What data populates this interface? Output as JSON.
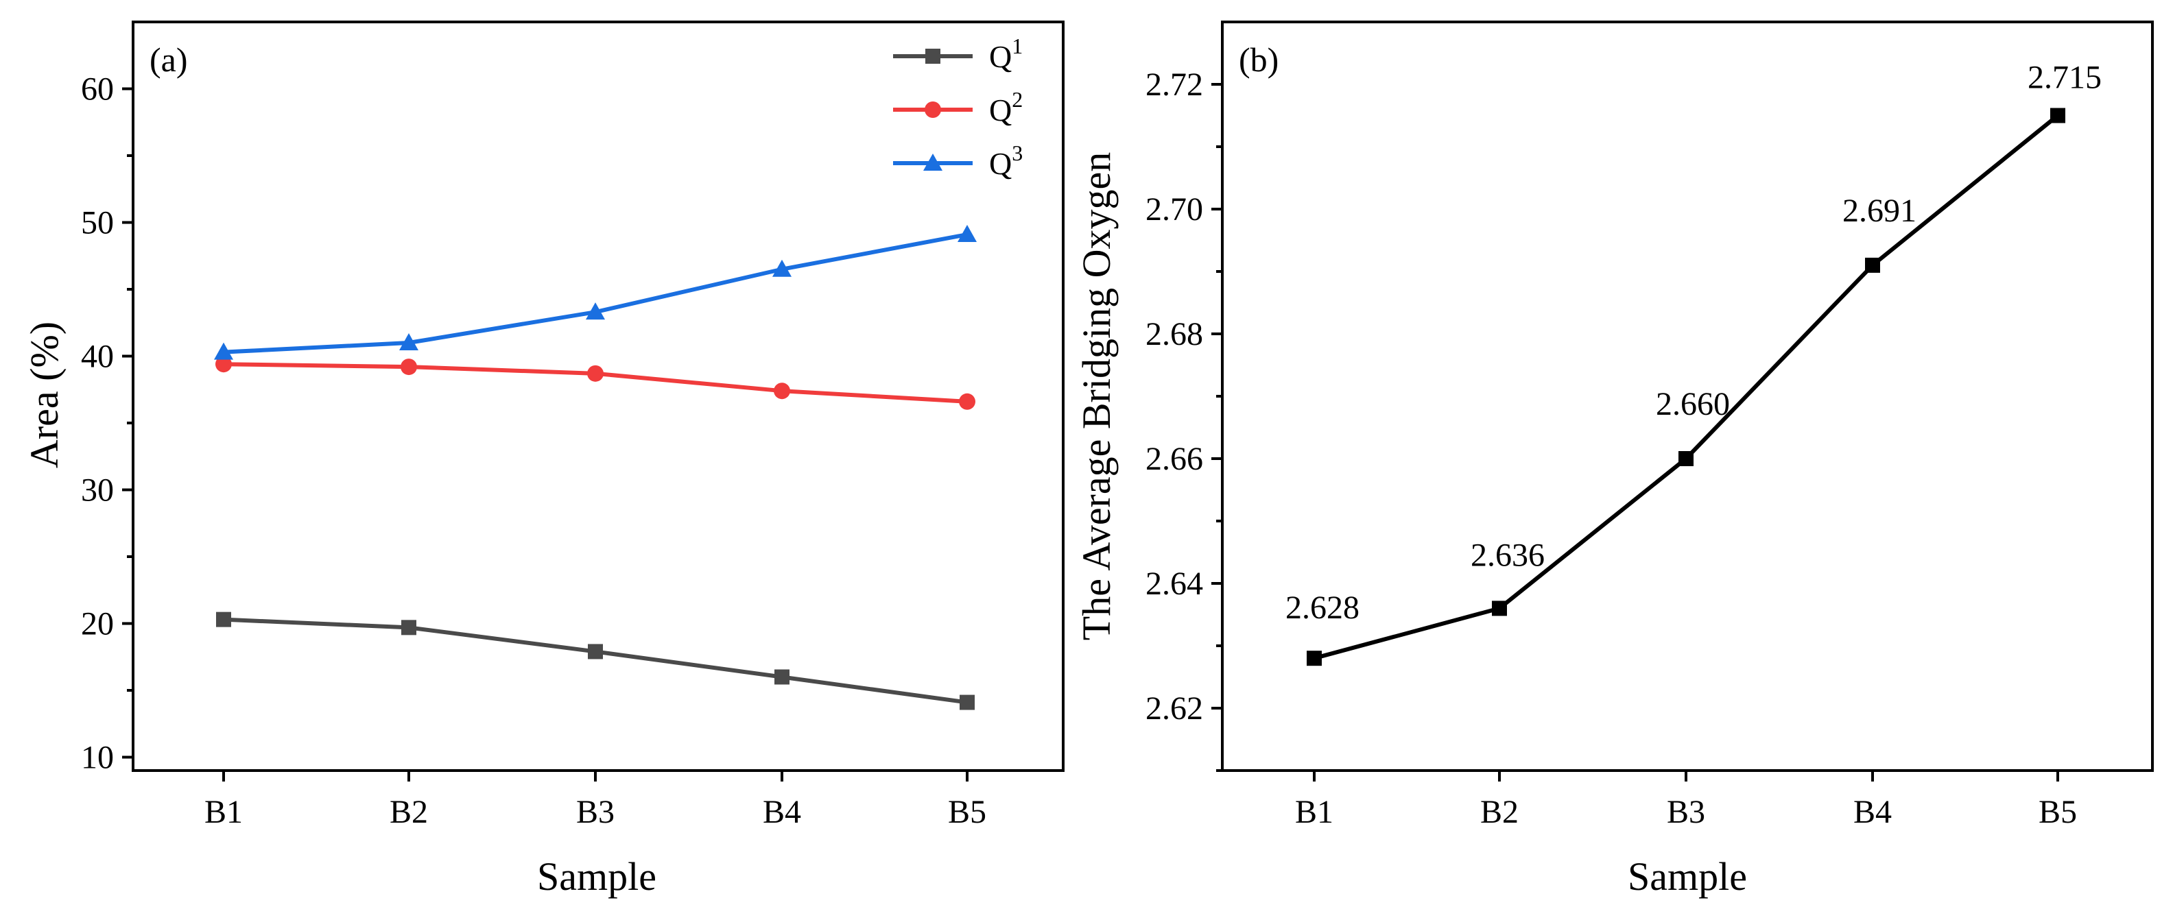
{
  "chart_data": [
    {
      "type": "line",
      "panel_label": "(a)",
      "title": "",
      "xlabel": "Sample",
      "ylabel": "Area (%)",
      "categories": [
        "B1",
        "B2",
        "B3",
        "B4",
        "B5"
      ],
      "ylim": [
        9,
        65
      ],
      "yticks": [
        10,
        20,
        30,
        40,
        50,
        60
      ],
      "grid": false,
      "legend_position": "top-right",
      "series": [
        {
          "name": "Q",
          "sup": "1",
          "marker": "square",
          "color": "#4a4a4a",
          "values": [
            20.3,
            19.7,
            17.9,
            16.0,
            14.1
          ]
        },
        {
          "name": "Q",
          "sup": "2",
          "marker": "circle",
          "color": "#f03c3c",
          "values": [
            39.4,
            39.2,
            38.7,
            37.4,
            36.6
          ]
        },
        {
          "name": "Q",
          "sup": "3",
          "marker": "triangle",
          "color": "#1a6fe0",
          "values": [
            40.3,
            41.0,
            43.3,
            46.5,
            49.1
          ]
        }
      ]
    },
    {
      "type": "line",
      "panel_label": "(b)",
      "title": "",
      "xlabel": "Sample",
      "ylabel": "The Average Bridging Oxygen",
      "categories": [
        "B1",
        "B2",
        "B3",
        "B4",
        "B5"
      ],
      "ylim": [
        2.61,
        2.73
      ],
      "yticks": [
        2.62,
        2.64,
        2.66,
        2.68,
        2.7,
        2.72
      ],
      "ytick_labels": [
        "2.62",
        "2.64",
        "2.66",
        "2.68",
        "2.70",
        "2.72"
      ],
      "grid": false,
      "series": [
        {
          "name": "Average Bridging Oxygen",
          "marker": "square",
          "color": "#000000",
          "values": [
            2.628,
            2.636,
            2.66,
            2.691,
            2.715
          ]
        }
      ],
      "data_labels": [
        "2.628",
        "2.636",
        "2.660",
        "2.691",
        "2.715"
      ]
    }
  ]
}
